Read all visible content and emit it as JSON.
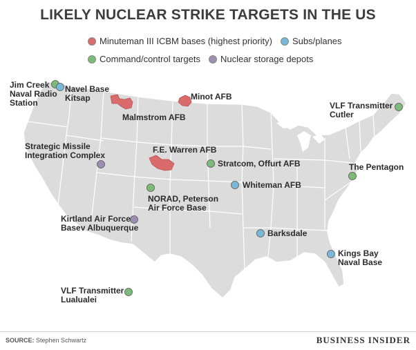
{
  "title": "LIKELY NUCLEAR STRIKE TARGETS IN THE US",
  "legend": [
    {
      "label": "Minuteman III ICBM bases (highest priority)",
      "color": "#d96b6b"
    },
    {
      "label": "Subs/planes",
      "color": "#7ab8d9"
    },
    {
      "label": "Command/control targets",
      "color": "#7dbb78"
    },
    {
      "label": "Nuclear storage depots",
      "color": "#9d8fb3"
    }
  ],
  "colors": {
    "land": "#dcdcdc",
    "border": "#ffffff",
    "icbm": "#d96b6b",
    "sub": "#7ab8d9",
    "command": "#7dbb78",
    "storage": "#9d8fb3"
  },
  "targets": {
    "jim_creek": "Jim Creek\nNaval Radio\nStation",
    "kitsap": "Navel Base\nKitsap",
    "malmstrom": "Malmstrom AFB",
    "minot": "Minot AFB",
    "cutler": "VLF Transmitter\nCutler",
    "strategic_missile": "Strategic Missile\nIntegration Complex",
    "fe_warren": "F.E. Warren AFB",
    "stratcom": "Stratcom, Offurt AFB",
    "pentagon": "The Pentagon",
    "whiteman": "Whiteman AFB",
    "norad": "NORAD, Peterson\nAir Force Base",
    "kirtland": "Kirtland Air Force\nBasev Albuquerque",
    "barksdale": "Barksdale",
    "kings_bay": "Kings Bay\nNaval Base",
    "lualualei": "VLF Transmitter\nLualualei"
  },
  "footer": {
    "source_label": "SOURCE:",
    "source_text": "Stephen Schwartz",
    "brand": "BUSINESS INSIDER"
  }
}
